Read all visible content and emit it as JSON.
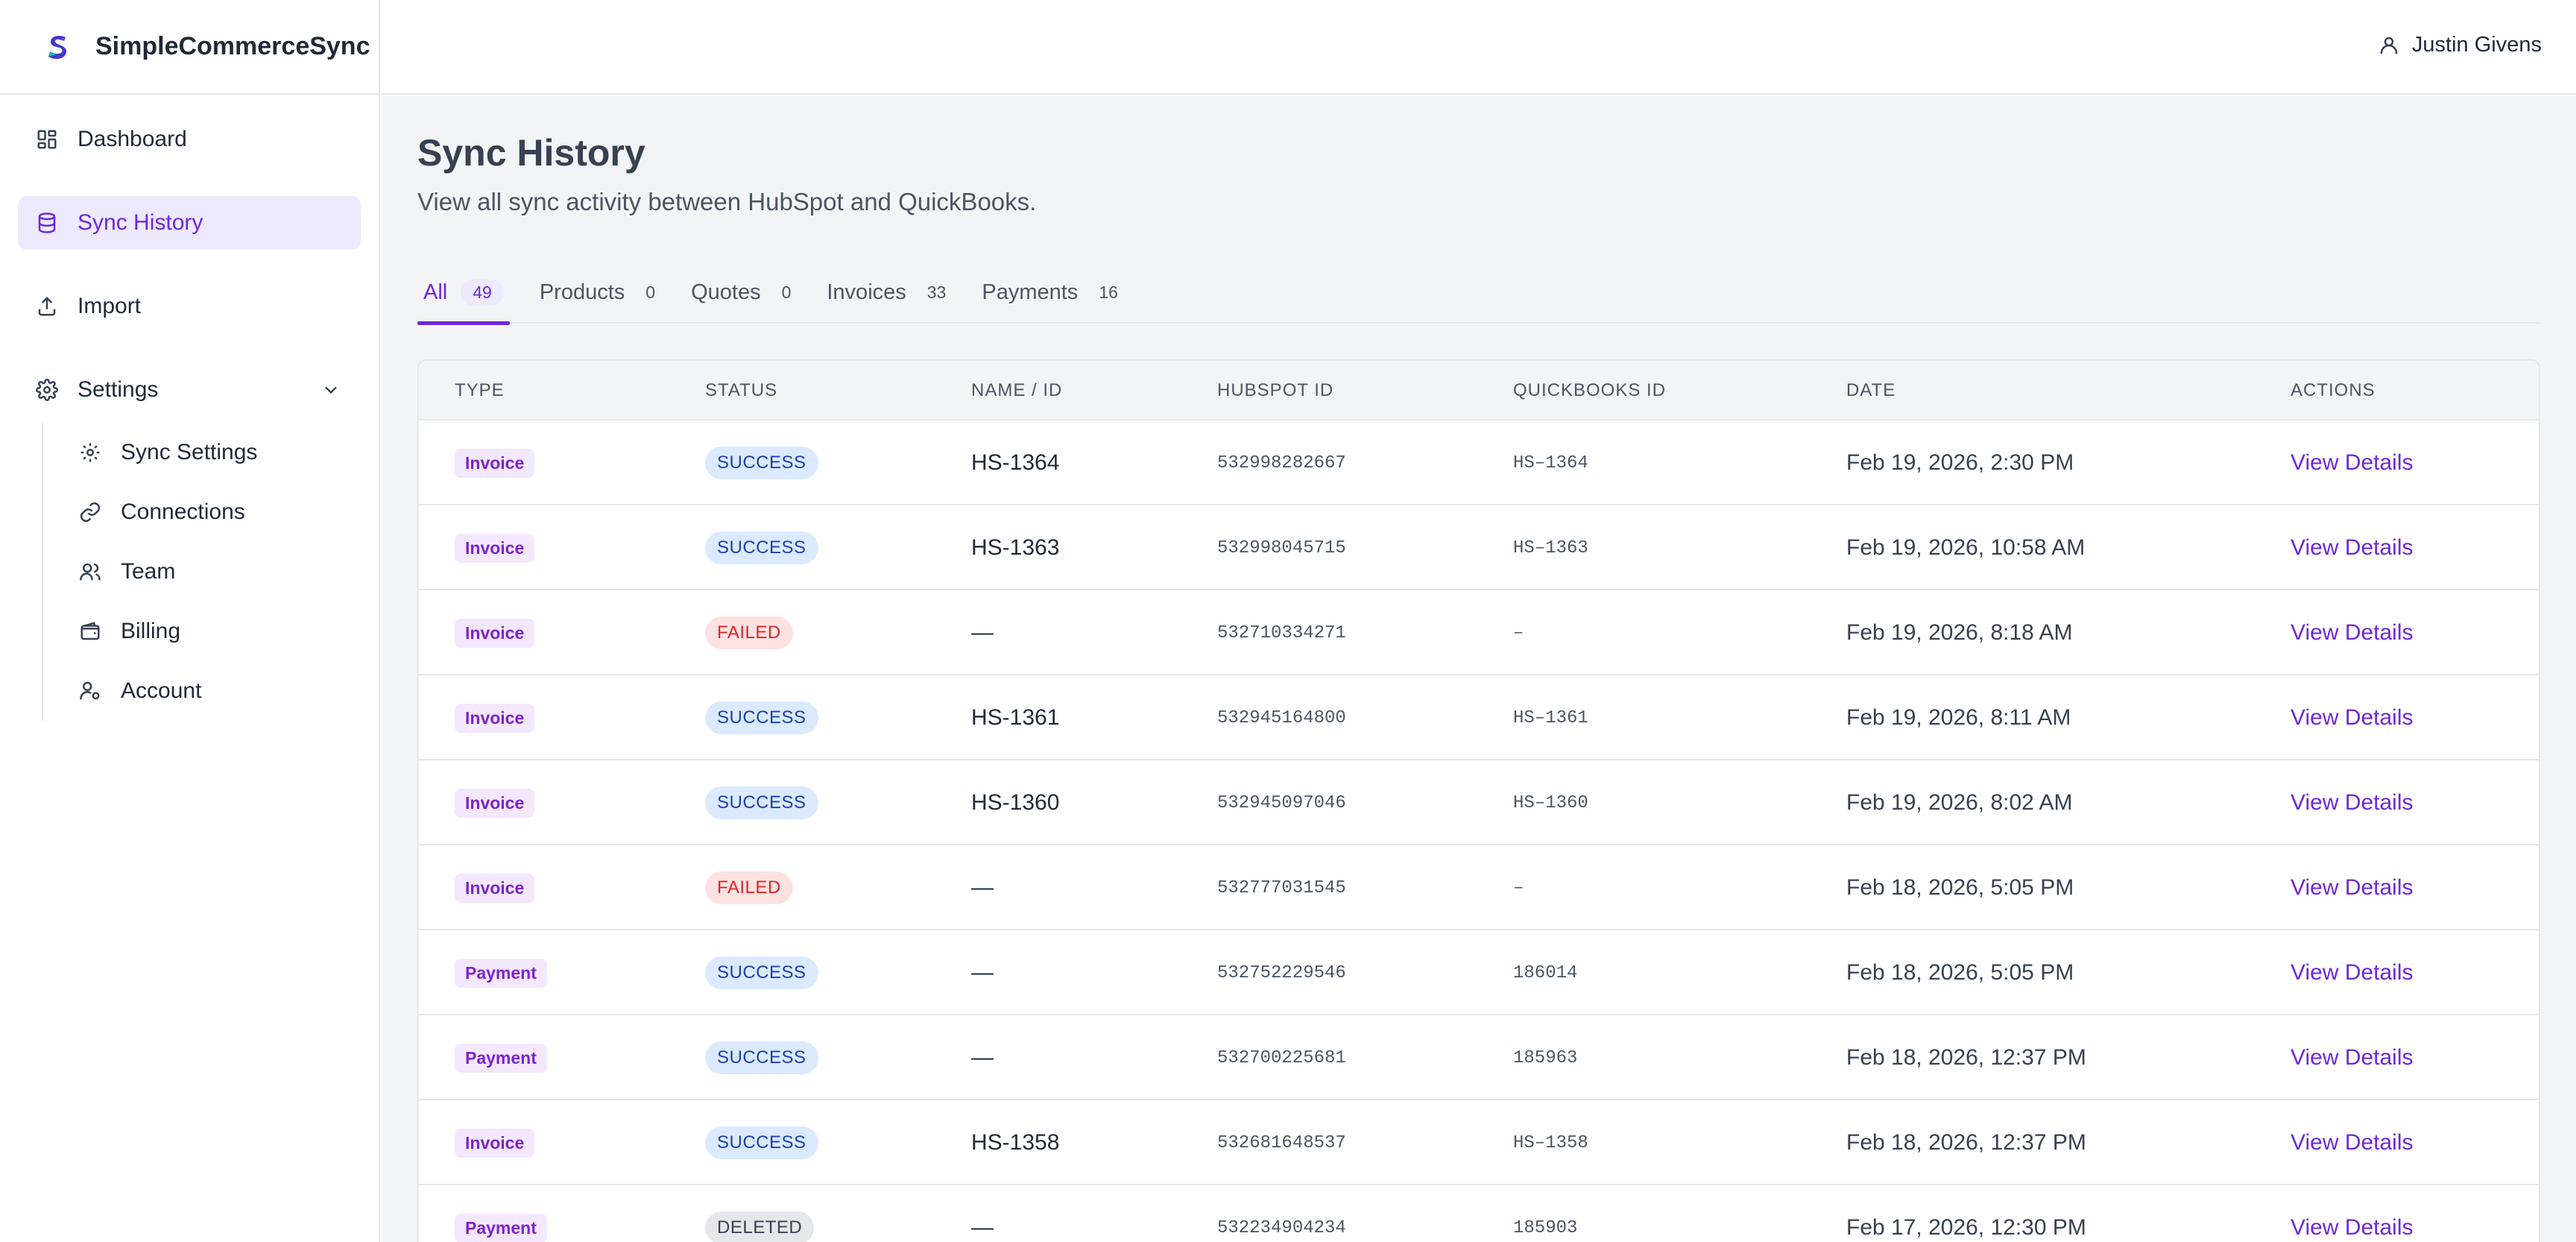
{
  "brand": {
    "name": "SimpleCommerceSync",
    "logo_icon": "s-logo-icon"
  },
  "user": {
    "name": "Justin Givens"
  },
  "sidebar": {
    "items": [
      {
        "label": "Dashboard",
        "icon": "dashboard-icon"
      },
      {
        "label": "Sync History",
        "icon": "database-icon",
        "active": true
      },
      {
        "label": "Import",
        "icon": "upload-icon"
      },
      {
        "label": "Settings",
        "icon": "gear-icon",
        "expanded": true
      }
    ],
    "settings_sub": [
      {
        "label": "Sync Settings",
        "icon": "gear-icon"
      },
      {
        "label": "Connections",
        "icon": "link-icon"
      },
      {
        "label": "Team",
        "icon": "users-icon"
      },
      {
        "label": "Billing",
        "icon": "wallet-icon"
      },
      {
        "label": "Account",
        "icon": "user-gear-icon"
      }
    ]
  },
  "page": {
    "title": "Sync History",
    "subtitle": "View all sync activity between HubSpot and QuickBooks."
  },
  "tabs": [
    {
      "label": "All",
      "count": "49",
      "active": true
    },
    {
      "label": "Products",
      "count": "0"
    },
    {
      "label": "Quotes",
      "count": "0"
    },
    {
      "label": "Invoices",
      "count": "33"
    },
    {
      "label": "Payments",
      "count": "16"
    }
  ],
  "table": {
    "headers": {
      "type": "TYPE",
      "status": "STATUS",
      "name": "NAME / ID",
      "hubspot": "HUBSPOT ID",
      "quickbooks": "QUICKBOOKS ID",
      "date": "DATE",
      "actions": "ACTIONS"
    },
    "rows": [
      {
        "type": "Invoice",
        "status": "SUCCESS",
        "name": "HS-1364",
        "hubspot_id": "532998282667",
        "quickbooks_id": "HS–1364",
        "date": "Feb 19, 2026, 2:30 PM",
        "action": "View Details"
      },
      {
        "type": "Invoice",
        "status": "SUCCESS",
        "name": "HS-1363",
        "hubspot_id": "532998045715",
        "quickbooks_id": "HS–1363",
        "date": "Feb 19, 2026, 10:58 AM",
        "action": "View Details"
      },
      {
        "type": "Invoice",
        "status": "FAILED",
        "name": "—",
        "hubspot_id": "532710334271",
        "quickbooks_id": "–",
        "date": "Feb 19, 2026, 8:18 AM",
        "action": "View Details"
      },
      {
        "type": "Invoice",
        "status": "SUCCESS",
        "name": "HS-1361",
        "hubspot_id": "532945164800",
        "quickbooks_id": "HS–1361",
        "date": "Feb 19, 2026, 8:11 AM",
        "action": "View Details"
      },
      {
        "type": "Invoice",
        "status": "SUCCESS",
        "name": "HS-1360",
        "hubspot_id": "532945097046",
        "quickbooks_id": "HS–1360",
        "date": "Feb 19, 2026, 8:02 AM",
        "action": "View Details"
      },
      {
        "type": "Invoice",
        "status": "FAILED",
        "name": "—",
        "hubspot_id": "532777031545",
        "quickbooks_id": "–",
        "date": "Feb 18, 2026, 5:05 PM",
        "action": "View Details"
      },
      {
        "type": "Payment",
        "status": "SUCCESS",
        "name": "—",
        "hubspot_id": "532752229546",
        "quickbooks_id": "186014",
        "date": "Feb 18, 2026, 5:05 PM",
        "action": "View Details"
      },
      {
        "type": "Payment",
        "status": "SUCCESS",
        "name": "—",
        "hubspot_id": "532700225681",
        "quickbooks_id": "185963",
        "date": "Feb 18, 2026, 12:37 PM",
        "action": "View Details"
      },
      {
        "type": "Invoice",
        "status": "SUCCESS",
        "name": "HS-1358",
        "hubspot_id": "532681648537",
        "quickbooks_id": "HS–1358",
        "date": "Feb 18, 2026, 12:37 PM",
        "action": "View Details"
      },
      {
        "type": "Payment",
        "status": "DELETED",
        "name": "—",
        "hubspot_id": "532234904234",
        "quickbooks_id": "185903",
        "date": "Feb 17, 2026, 12:30 PM",
        "action": "View Details"
      }
    ]
  },
  "colors": {
    "accent": "#6d28d9",
    "success_bg": "#dbeafe",
    "failed_bg": "#fee2e2",
    "deleted_bg": "#e5e7eb",
    "type_bg": "#f3e8ff"
  }
}
